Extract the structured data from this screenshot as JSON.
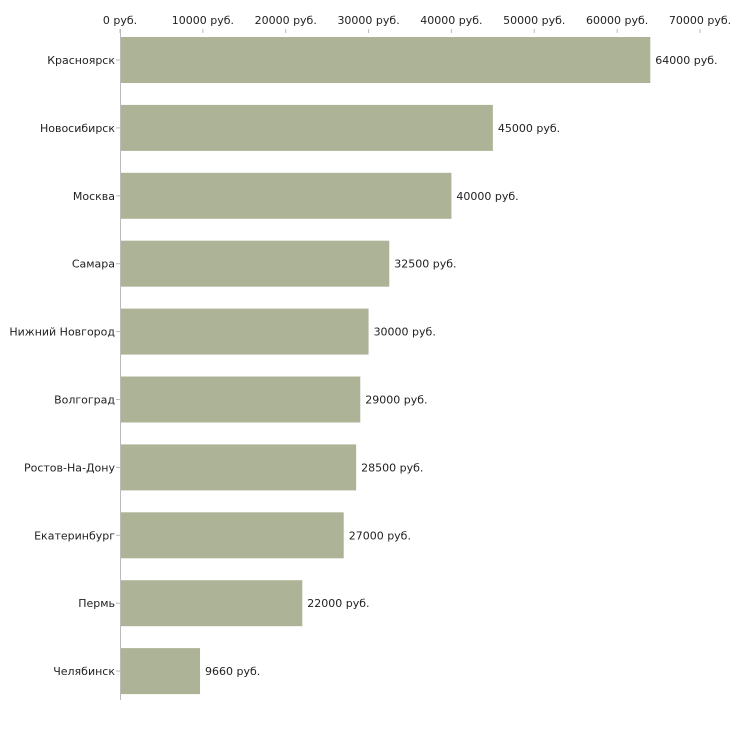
{
  "chart_data": {
    "type": "bar",
    "orientation": "horizontal",
    "title": "",
    "xlabel": "",
    "ylabel": "",
    "xlim": [
      0,
      70000
    ],
    "grid": false,
    "bar_color": "#adb397",
    "tick_values": [
      0,
      10000,
      20000,
      30000,
      40000,
      50000,
      60000,
      70000
    ],
    "tick_labels": [
      "0 руб.",
      "10000 руб.",
      "20000 руб.",
      "30000 руб.",
      "40000 руб.",
      "50000 руб.",
      "60000 руб.",
      "70000 руб."
    ],
    "categories": [
      "Красноярск",
      "Новосибирск",
      "Москва",
      "Самара",
      "Нижний Новгород",
      "Волгоград",
      "Ростов-На-Дону",
      "Екатеринбург",
      "Пермь",
      "Челябинск"
    ],
    "values": [
      64000,
      45000,
      40000,
      32500,
      30000,
      29000,
      28500,
      27000,
      22000,
      9660
    ],
    "data_labels": [
      "64000 руб.",
      "45000 руб.",
      "40000 руб.",
      "32500 руб.",
      "30000 руб.",
      "29000 руб.",
      "28500 руб.",
      "27000 руб.",
      "22000 руб.",
      "9660 руб."
    ]
  }
}
